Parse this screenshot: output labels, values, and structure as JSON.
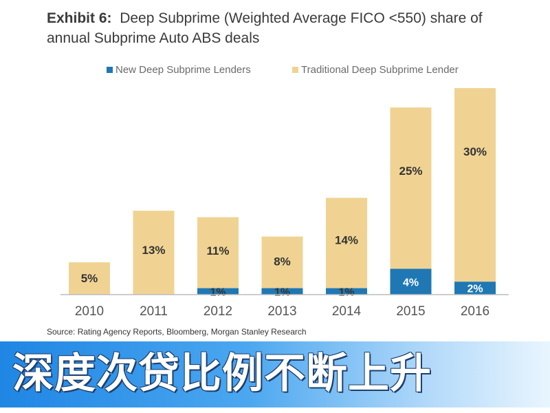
{
  "title": {
    "exhibit": "Exhibit 6:",
    "line1": "Deep Subprime (Weighted Average FICO <550) share of",
    "line2": "annual Subprime Auto ABS deals"
  },
  "source": "Source: Rating Agency Reports, Bloomberg, Morgan Stanley Research",
  "caption": "深度次贷比例不断上升",
  "colors": {
    "new": "#1f78b4",
    "traditional": "#f0d393",
    "axis": "#bbbbbb",
    "label": "#333333",
    "banner_start": "#1f86e4",
    "banner_end": "#e9f5fe"
  },
  "chart_data": {
    "type": "bar",
    "stacked": true,
    "categories": [
      "2010",
      "2011",
      "2012",
      "2013",
      "2014",
      "2015",
      "2016"
    ],
    "series": [
      {
        "name": "New Deep Subprime Lenders",
        "color": "#1f78b4",
        "values": [
          0,
          0,
          1,
          1,
          1,
          4,
          2
        ],
        "labels": [
          "",
          "",
          "1%",
          "1%",
          "1%",
          "4%",
          "2%"
        ]
      },
      {
        "name": "Traditional Deep Subprime Lender",
        "color": "#f0d393",
        "values": [
          5,
          13,
          11,
          8,
          14,
          25,
          30
        ],
        "labels": [
          "5%",
          "13%",
          "11%",
          "8%",
          "14%",
          "25%",
          "30%"
        ]
      }
    ],
    "ylim": [
      0,
      32
    ],
    "grid": false,
    "y_axis_shown": false,
    "legend_position": "top"
  }
}
